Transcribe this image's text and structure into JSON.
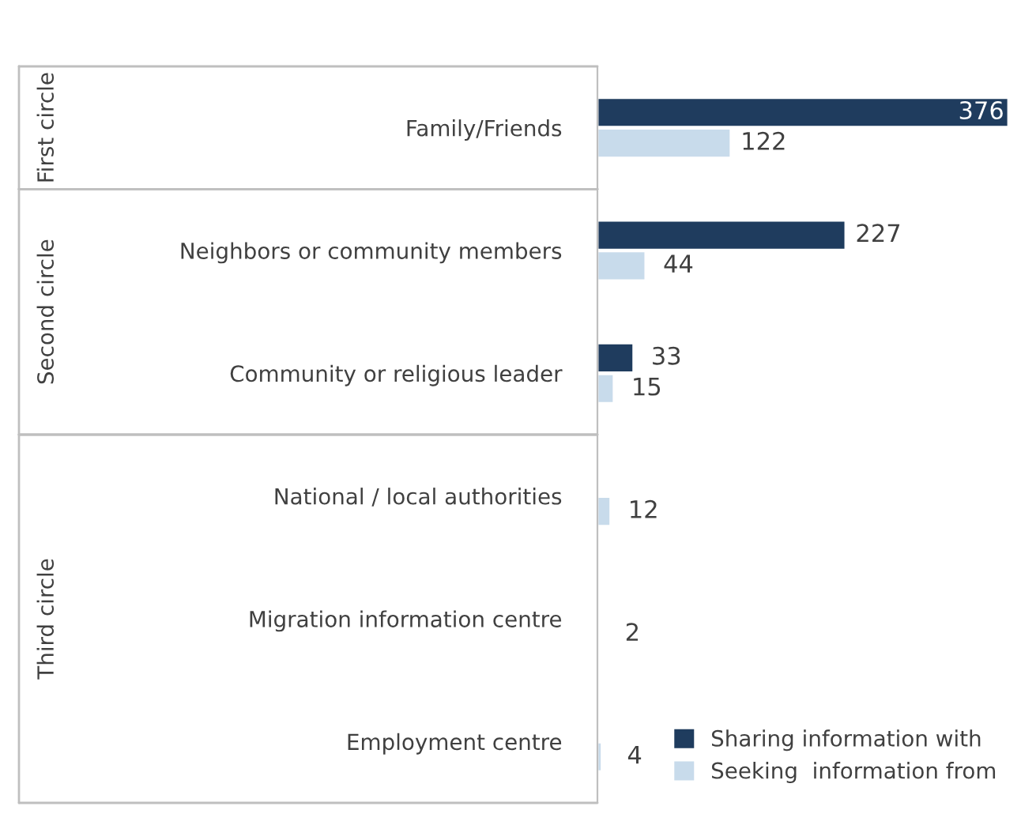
{
  "chart_data": {
    "type": "bar",
    "orientation": "horizontal",
    "data_labels": true,
    "legend": "bottom right",
    "categories": [
      "Family/Friends",
      "Neighbors or community members",
      "Community or religious leader",
      "National / local authorities",
      "Migration information centre",
      "Employment centre"
    ],
    "series": [
      {
        "name": "Sharing information with",
        "color": "#1f3c5e",
        "values": [
          376,
          227,
          33,
          null,
          null,
          null
        ]
      },
      {
        "name": "Seeking  information from",
        "color": "#c8dbeb",
        "values": [
          122,
          44,
          15,
          12,
          2,
          4
        ]
      }
    ],
    "annotations": [
      "First circle",
      "Second circle",
      "Third circle"
    ]
  }
}
